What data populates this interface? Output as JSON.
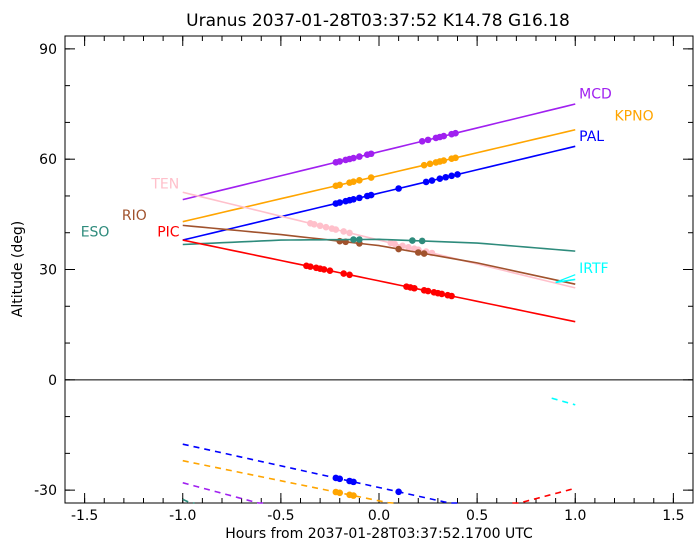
{
  "chart_data": {
    "type": "line",
    "title": "Uranus 2037-01-28T03:37:52  K14.78  G16.18",
    "xlabel": "Hours from 2037-01-28T03:37:52.1700 UTC",
    "ylabel": "Altitude (deg)",
    "xlim": [
      -1.6,
      1.6
    ],
    "ylim": [
      -33.5,
      93.5
    ],
    "xticks": [
      -1.5,
      -1.0,
      -0.5,
      0.0,
      0.5,
      1.0,
      1.5
    ],
    "xtick_labels": [
      "-1.5",
      "-1.0",
      "-0.5",
      "0.0",
      "0.5",
      "1.0",
      "1.5"
    ],
    "yticks": [
      -30,
      0,
      30,
      60,
      90
    ],
    "ytick_labels": [
      "-30",
      "0",
      "30",
      "60",
      "90"
    ],
    "grid": false,
    "series": [
      {
        "name": "MCD",
        "color": "#a020f0",
        "label_x": 1.02,
        "label_y": 76.5,
        "x": [
          -1.0,
          1.0
        ],
        "y": [
          49,
          75
        ],
        "dots": [
          -0.22,
          -0.2,
          -0.17,
          -0.15,
          -0.13,
          -0.1,
          -0.06,
          -0.04,
          0.22,
          0.25,
          0.29,
          0.31,
          0.33,
          0.37,
          0.39
        ]
      },
      {
        "name": "KPNO",
        "color": "#ffa500",
        "label_x": 1.2,
        "label_y": 70.5,
        "x": [
          -1.0,
          1.0
        ],
        "y": [
          43,
          68
        ],
        "dots": [
          -0.22,
          -0.2,
          -0.15,
          -0.13,
          -0.1,
          -0.04,
          0.23,
          0.26,
          0.29,
          0.31,
          0.33,
          0.37,
          0.39
        ]
      },
      {
        "name": "PAL",
        "color": "#0000ff",
        "label_x": 1.02,
        "label_y": 65,
        "x": [
          -1.0,
          1.0
        ],
        "y": [
          38,
          63.5
        ],
        "dots": [
          -0.22,
          -0.2,
          -0.17,
          -0.15,
          -0.13,
          -0.1,
          -0.06,
          -0.04,
          0.1,
          0.24,
          0.27,
          0.31,
          0.34,
          0.37,
          0.4
        ]
      },
      {
        "name": "TEN",
        "color": "#ffc0cb",
        "label_x": -1.16,
        "label_y": 52,
        "x": [
          -1.0,
          1.0
        ],
        "y": [
          51,
          25
        ],
        "dots": [
          -0.35,
          -0.33,
          -0.3,
          -0.27,
          -0.24,
          -0.22,
          -0.18,
          -0.15,
          0.06,
          0.08,
          0.12,
          0.15,
          0.18,
          0.2,
          0.24,
          0.27
        ]
      },
      {
        "name": "RIO",
        "color": "#a0522d",
        "label_x": -1.31,
        "label_y": 43.5,
        "x": [
          -1.0,
          -0.5,
          0.0,
          0.5,
          1.0
        ],
        "y": [
          42,
          39.5,
          36.5,
          31.8,
          26
        ],
        "dots": [
          -0.2,
          -0.17,
          -0.1,
          0.1,
          0.2,
          0.23
        ]
      },
      {
        "name": "ESO",
        "color": "#2e8b7c",
        "label_x": -1.52,
        "label_y": 39,
        "x": [
          -1.0,
          -0.5,
          0.0,
          0.5,
          1.0
        ],
        "y": [
          36.8,
          38,
          38.2,
          37.2,
          35
        ],
        "dots": [
          -0.13,
          -0.1,
          0.17,
          0.22
        ]
      },
      {
        "name": "PIC",
        "color": "#ff0000",
        "label_x": -1.13,
        "label_y": 39,
        "x": [
          -1.0,
          1.0
        ],
        "y": [
          38,
          15.8
        ],
        "dots": [
          -0.37,
          -0.35,
          -0.32,
          -0.3,
          -0.28,
          -0.25,
          -0.18,
          -0.15,
          0.14,
          0.16,
          0.18,
          0.23,
          0.25,
          0.28,
          0.3,
          0.32,
          0.35,
          0.37
        ]
      },
      {
        "name": "IRTF",
        "color": "#00ffff",
        "label_x": 1.02,
        "label_y": 29,
        "x": [
          0.9,
          1.0
        ],
        "y": [
          26.5,
          27.3
        ],
        "dots": []
      }
    ],
    "below_horizon": [
      {
        "name": "PAL",
        "color": "#0000ff",
        "x": [
          -1.0,
          0.4
        ],
        "y": [
          -17.5,
          -34
        ],
        "dots": [
          -0.22,
          -0.2,
          -0.15,
          -0.13,
          0.1
        ]
      },
      {
        "name": "KPNO",
        "color": "#ffa500",
        "x": [
          -1.0,
          0.1
        ],
        "y": [
          -22,
          -34
        ],
        "dots": [
          -0.22,
          -0.2,
          -0.15,
          -0.13
        ]
      },
      {
        "name": "MCD",
        "color": "#a020f0",
        "x": [
          -1.0,
          -0.58
        ],
        "y": [
          -28,
          -34
        ],
        "dots": []
      },
      {
        "name": "ESO",
        "color": "#2e8b7c",
        "x": [
          -1.0,
          -0.94
        ],
        "y": [
          -32.5,
          -34
        ],
        "dots": []
      },
      {
        "name": "PIC",
        "color": "#ff0000",
        "x": [
          0.68,
          1.0
        ],
        "y": [
          -34,
          -29.5
        ],
        "dots": []
      },
      {
        "name": "IRTF",
        "color": "#00ffff",
        "x": [
          0.88,
          1.0
        ],
        "y": [
          -5,
          -6.8
        ],
        "dots": []
      }
    ]
  }
}
